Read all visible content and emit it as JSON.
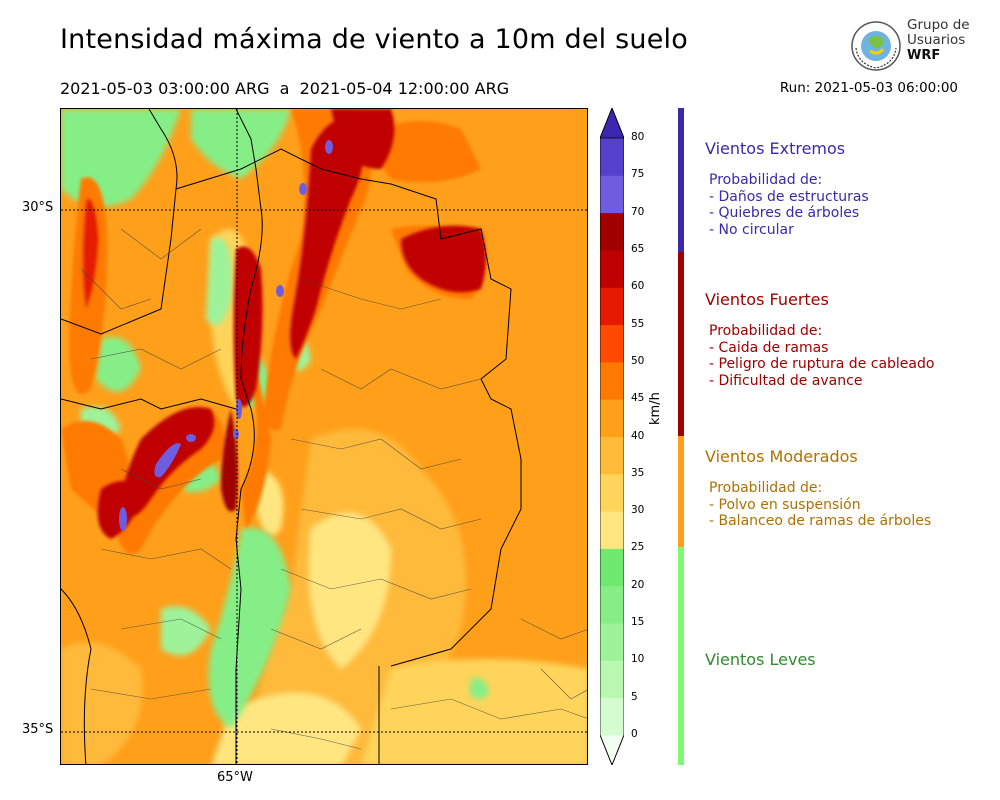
{
  "title": "Intensidad máxima de viento a 10m del suelo",
  "subtitle": "2021-05-03 03:00:00 ARG  a  2021-05-04 12:00:00 ARG",
  "run": "Run: 2021-05-03 06:00:00",
  "logo": {
    "line1": "Grupo de",
    "line2": "Usuarios",
    "line3": "WRF"
  },
  "map": {
    "lat_labels": [
      "30°S",
      "35°S"
    ],
    "lon_labels": [
      "65°W"
    ]
  },
  "colorbar": {
    "unit": "km/h",
    "ticks": [
      "0",
      "5",
      "10",
      "15",
      "20",
      "25",
      "30",
      "35",
      "40",
      "45",
      "50",
      "55",
      "60",
      "65",
      "70",
      "75",
      "80"
    ],
    "colors": [
      "#f0fff0",
      "#d4fcd0",
      "#b8f8b0",
      "#9ef39a",
      "#86ee86",
      "#6fe86f",
      "#ffe680",
      "#ffd45a",
      "#ffba3a",
      "#ff9f1a",
      "#ff7a00",
      "#ff4a00",
      "#e61a00",
      "#c00000",
      "#a00000",
      "#6f5de0",
      "#5641cc",
      "#3b27b0"
    ]
  },
  "categories": [
    {
      "title": "Vientos Extremos",
      "color": "#3a2aa8",
      "lines": "Probabilidad de:\n- Daños de estructuras\n- Quiebres de árboles\n- No circular"
    },
    {
      "title": "Vientos Fuertes",
      "color": "#a00000",
      "lines": "Probabilidad de:\n- Caida de ramas\n- Peligro de ruptura de cableado\n- Dificultad de avance"
    },
    {
      "title": "Vientos Moderados",
      "color": "#b07000",
      "lines": "Probabilidad de:\n- Polvo en suspensión\n- Balanceo de ramas de árboles"
    },
    {
      "title": "Vientos Leves",
      "color": "#2e8b2e",
      "lines": ""
    }
  ]
}
